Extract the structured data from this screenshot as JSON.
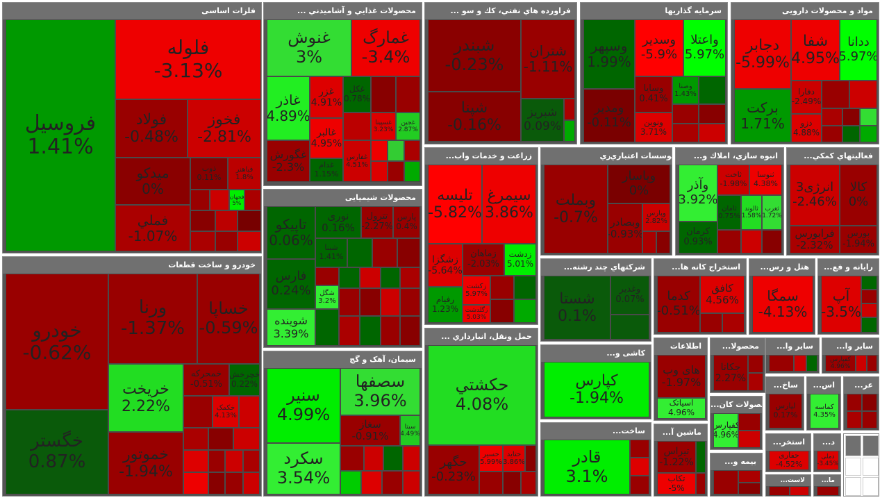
{
  "colors": {
    "strong_green": "#00ff00",
    "green": "#33ee33",
    "mid_green": "#00aa00",
    "dark_green": "#006600",
    "neutral_green": "#0f5f0f",
    "strong_red": "#ff0000",
    "red": "#dd0000",
    "dark_red": "#990000",
    "deep_red": "#7a0000"
  },
  "sectors": [
    {
      "id": "metals",
      "title": "فلزات اساسی",
      "tiles": [
        {
          "sym": "فروسیل",
          "chg": "1.41%"
        },
        {
          "sym": "فلوله",
          "chg": "-3.13%"
        },
        {
          "sym": "فولاد",
          "chg": "-0.48%"
        },
        {
          "sym": "فخوز",
          "chg": "-2.81%"
        },
        {
          "sym": "میدکو",
          "chg": "0%"
        },
        {
          "sym": "فملي",
          "chg": "-1.07%"
        },
        {
          "sym": "ذوب",
          "chg": "0.11%"
        },
        {
          "sym": "فباهنر",
          "chg": "1.8%"
        },
        {
          "sym": "فجهان",
          "chg": "5%"
        }
      ]
    },
    {
      "id": "food",
      "title": "... محصولات غذايي و آشاميدني",
      "tiles": [
        {
          "sym": "غنوش",
          "chg": "3%"
        },
        {
          "sym": "غمارگ",
          "chg": "-3.4%"
        },
        {
          "sym": "غاذر",
          "chg": "4.89%"
        },
        {
          "sym": "غزر",
          "chg": "4.91%"
        },
        {
          "sym": "غكل",
          "chg": "0.78%"
        },
        {
          "sym": "غالبر",
          "chg": "4.95%"
        },
        {
          "sym": "غگورش",
          "chg": "-2.3%"
        },
        {
          "sym": "غدام",
          "chg": "1.15%"
        },
        {
          "sym": "غسپینا",
          "chg": "3.23%"
        },
        {
          "sym": "غجین",
          "chg": "2.87%"
        },
        {
          "sym": "غفارس",
          "chg": "4.51%"
        }
      ]
    },
    {
      "id": "oil",
      "title": "... فراورده هاي نفتي، كك و سو",
      "tiles": [
        {
          "sym": "شبندر",
          "chg": "-0.23%"
        },
        {
          "sym": "شتران",
          "chg": "-1.11%"
        },
        {
          "sym": "شپنا",
          "chg": "-0.16%"
        },
        {
          "sym": "شبریز",
          "chg": "0.09%"
        }
      ]
    },
    {
      "id": "invest",
      "title": "سرمایه گذاریها",
      "tiles": [
        {
          "sym": "وسپهر",
          "chg": "1.99%"
        },
        {
          "sym": "وسدیر",
          "chg": "-5.9%"
        },
        {
          "sym": "واعتلا",
          "chg": "5.97%"
        },
        {
          "sym": "ومدیر",
          "chg": "-0.11%"
        },
        {
          "sym": "وسایا",
          "chg": "0.41%"
        },
        {
          "sym": "ونوین",
          "chg": "3.71%"
        },
        {
          "sym": "وصنا",
          "chg": "1.43%"
        }
      ]
    },
    {
      "id": "pharma",
      "title": "مواد و محصولات دارویی",
      "tiles": [
        {
          "sym": "دجابر",
          "chg": "-5.99%"
        },
        {
          "sym": "شفا",
          "chg": "4.95%"
        },
        {
          "sym": "ددانا",
          "chg": "5.97%"
        },
        {
          "sym": "برکت",
          "chg": "1.71%"
        },
        {
          "sym": "دفارا",
          "chg": "-2.49%"
        },
        {
          "sym": "دزو",
          "chg": "4.88%"
        }
      ]
    },
    {
      "id": "agri",
      "title": "...زراعت و خدمات واب",
      "tiles": [
        {
          "sym": "تلیسه",
          "chg": "-5.82%"
        },
        {
          "sym": "سیمرغ",
          "chg": "3.86%"
        },
        {
          "sym": "زشگزا",
          "chg": "-5.64%"
        },
        {
          "sym": "زماهان",
          "chg": "-2.03%"
        },
        {
          "sym": "زدشت",
          "chg": "5.01%"
        },
        {
          "sym": "زکشت",
          "chg": "5.97%"
        },
        {
          "sym": "رفیام",
          "chg": "1.23%"
        },
        {
          "sym": "زگلدشت",
          "chg": "5.03%"
        }
      ]
    },
    {
      "id": "credit",
      "title": "موسسات اعتباري",
      "tiles": [
        {
          "sym": "وبملت",
          "chg": "-0.7%"
        }
      ]
    },
    {
      "id": "banks",
      "title": "بانکها و موسسات اعتباري",
      "tiles": [
        {
          "sym": "وپاسار",
          "chg": "0%"
        },
        {
          "sym": "وبصادر",
          "chg": "-0.93%"
        },
        {
          "sym": "وپارس",
          "chg": "2.82%"
        }
      ]
    },
    {
      "id": "mass",
      "title": "...انبوه سازي، املاك و",
      "tiles": [
        {
          "sym": "وآذر",
          "chg": "3.92%"
        },
        {
          "sym": "ثاخت",
          "chg": "-1.98%"
        },
        {
          "sym": "ثنوسا",
          "chg": "4.38%"
        },
        {
          "sym": "کرمان",
          "chg": "0.93%"
        },
        {
          "sym": "ثامان",
          "chg": "0.75%"
        },
        {
          "sym": "ثالوند",
          "chg": "1.58%"
        },
        {
          "sym": "ثغرب",
          "chg": "1.72%"
        }
      ]
    },
    {
      "id": "support",
      "title": "...فعاليتهاي كمكي",
      "tiles": [
        {
          "sym": "انرژی3",
          "chg": "-2.46%"
        },
        {
          "sym": "کالا",
          "chg": "0%"
        },
        {
          "sym": "فرابورس",
          "chg": "-2.32%"
        },
        {
          "sym": "بورس",
          "chg": "-1.94%"
        }
      ]
    },
    {
      "id": "chemical",
      "title": "محصولات شیمیایی",
      "tiles": [
        {
          "sym": "تاپیکو",
          "chg": "0.06%"
        },
        {
          "sym": "نوری",
          "chg": "0.16%"
        },
        {
          "sym": "تترول",
          "chg": "-2.27%"
        },
        {
          "sym": "پارس",
          "chg": "0.4%"
        },
        {
          "sym": "فارس",
          "chg": "0.24%"
        },
        {
          "sym": "شبنا",
          "chg": "1.41%"
        },
        {
          "sym": "شگل",
          "chg": "3.2%"
        },
        {
          "sym": "شوینده",
          "chg": "3.39%"
        }
      ]
    },
    {
      "id": "auto",
      "title": "خودرو و ساخت قطعات",
      "tiles": [
        {
          "sym": "خودرو",
          "chg": "-0.62%"
        },
        {
          "sym": "ورنا",
          "chg": "-1.37%"
        },
        {
          "sym": "خساپا",
          "chg": "-0.59%"
        },
        {
          "sym": "خریخت",
          "chg": "2.22%"
        },
        {
          "sym": "خمحرکه",
          "chg": "-0.51%"
        },
        {
          "sym": "خچرخش",
          "chg": "0.22%"
        },
        {
          "sym": "خگستر",
          "chg": "0.87%"
        },
        {
          "sym": "خموتور",
          "chg": "-1.94%"
        },
        {
          "sym": "خکمک",
          "chg": "4.13%"
        }
      ]
    },
    {
      "id": "cement",
      "title": "سیمان، آهک و گچ",
      "tiles": [
        {
          "sym": "سنیر",
          "chg": "4.99%"
        },
        {
          "sym": "سصفها",
          "chg": "3.96%"
        },
        {
          "sym": "سکرد",
          "chg": "3.54%"
        },
        {
          "sym": "سغاز",
          "chg": "-0.91%"
        },
        {
          "sym": "سیتا",
          "chg": "4.49%"
        }
      ]
    },
    {
      "id": "transport",
      "title": "... حمل ونقل، انبارداري",
      "tiles": [
        {
          "sym": "حکشتي",
          "chg": "4.08%"
        },
        {
          "sym": "حگهر",
          "chg": "-0.23%"
        },
        {
          "sym": "حسیر",
          "chg": "5.99%"
        },
        {
          "sym": "حتاید",
          "chg": "3.86%"
        }
      ]
    },
    {
      "id": "multi",
      "title": "...شركتهاي چند رشته",
      "tiles": [
        {
          "sym": "شستا",
          "chg": "0.1%"
        },
        {
          "sym": "وغدیر",
          "chg": "0.07%"
        }
      ]
    },
    {
      "id": "mining",
      "title": "...استخراج کانه ها",
      "tiles": [
        {
          "sym": "کدما",
          "chg": "-0.51%"
        },
        {
          "sym": "کافق",
          "chg": "4.56%"
        }
      ]
    },
    {
      "id": "hotel",
      "title": "...هتل و رس",
      "tiles": [
        {
          "sym": "سمگا",
          "chg": "-4.13%"
        }
      ]
    },
    {
      "id": "computer",
      "title": "...رایانه و فع",
      "tiles": [
        {
          "sym": "آپ",
          "chg": "-3.5%"
        }
      ]
    },
    {
      "id": "ict",
      "title": "اطلاعات",
      "tiles": [
        {
          "sym": "های وب",
          "chg": "-1.97%"
        },
        {
          "sym": "اسیاتک",
          "chg": "4.96%"
        }
      ]
    },
    {
      "id": "product",
      "title": "...محصولا",
      "tiles": [
        {
          "sym": "جکانا",
          "chg": "2.27%"
        }
      ]
    },
    {
      "id": "other1",
      "title": "...سایر وا",
      "tiles": []
    },
    {
      "id": "agri2",
      "title": "...کاشی و",
      "tiles": [
        {
          "sym": "کپارس",
          "chg": "-1.94%"
        }
      ]
    },
    {
      "id": "nonmetal",
      "title": "...سایر محصولات کان",
      "tiles": [
        {
          "sym": "کفپارس",
          "chg": "4.96%"
        }
      ]
    },
    {
      "id": "build",
      "title": "...ساخت",
      "tiles": [
        {
          "sym": "قادر",
          "chg": "3.1%"
        }
      ]
    },
    {
      "id": "sugar",
      "title": "قند و شکر",
      "tiles": [
        {
          "sym": "قثابت",
          "chg": "5%"
        }
      ]
    },
    {
      "id": "machine",
      "title": "...ماشین آ",
      "tiles": [
        {
          "sym": "تیراس",
          "chg": "-1.22%"
        },
        {
          "sym": "تکاب",
          "chg": "-5%"
        }
      ]
    },
    {
      "id": "insurance",
      "title": "...بیمه و",
      "tiles": []
    },
    {
      "id": "lasat",
      "title": "...لاست",
      "tiles": []
    },
    {
      "id": "textile",
      "title": "...ساخ",
      "tiles": [
        {
          "sym": "لپارس",
          "chg": "0.17%"
        }
      ]
    },
    {
      "id": "asas",
      "title": "...اس",
      "tiles": [
        {
          "sym": "کماسه",
          "chg": "4.35%"
        }
      ]
    },
    {
      "id": "ar",
      "title": "...عر",
      "tiles": []
    },
    {
      "id": "extract",
      "title": "...استخر",
      "tiles": [
        {
          "sym": "حفاری",
          "chg": "-4.52%"
        }
      ]
    },
    {
      "id": "d",
      "title": "...د",
      "tiles": [
        {
          "sym": "دملی",
          "chg": "-3.45%"
        }
      ]
    },
    {
      "id": "ma",
      "title": "...ما",
      "tiles": []
    }
  ]
}
